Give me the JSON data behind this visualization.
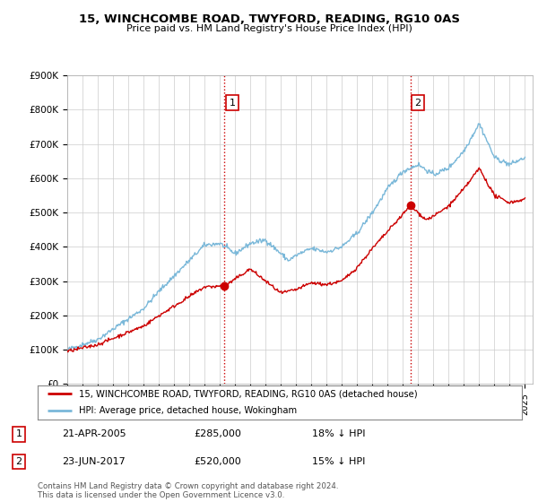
{
  "title": "15, WINCHCOMBE ROAD, TWYFORD, READING, RG10 0AS",
  "subtitle": "Price paid vs. HM Land Registry's House Price Index (HPI)",
  "hpi_color": "#7ab8d9",
  "price_color": "#cc0000",
  "marker_color": "#cc0000",
  "background_color": "#ffffff",
  "grid_color": "#cccccc",
  "ylim": [
    0,
    900000
  ],
  "yticks": [
    0,
    100000,
    200000,
    300000,
    400000,
    500000,
    600000,
    700000,
    800000,
    900000
  ],
  "ytick_labels": [
    "£0",
    "£100K",
    "£200K",
    "£300K",
    "£400K",
    "£500K",
    "£600K",
    "£700K",
    "£800K",
    "£900K"
  ],
  "sale1": {
    "date_num": 2005.31,
    "price": 285000,
    "label": "1"
  },
  "sale2": {
    "date_num": 2017.48,
    "price": 520000,
    "label": "2"
  },
  "legend_entries": [
    "15, WINCHCOMBE ROAD, TWYFORD, READING, RG10 0AS (detached house)",
    "HPI: Average price, detached house, Wokingham"
  ],
  "table_rows": [
    [
      "1",
      "21-APR-2005",
      "£285,000",
      "18% ↓ HPI"
    ],
    [
      "2",
      "23-JUN-2017",
      "£520,000",
      "15% ↓ HPI"
    ]
  ],
  "footnote": "Contains HM Land Registry data © Crown copyright and database right 2024.\nThis data is licensed under the Open Government Licence v3.0."
}
